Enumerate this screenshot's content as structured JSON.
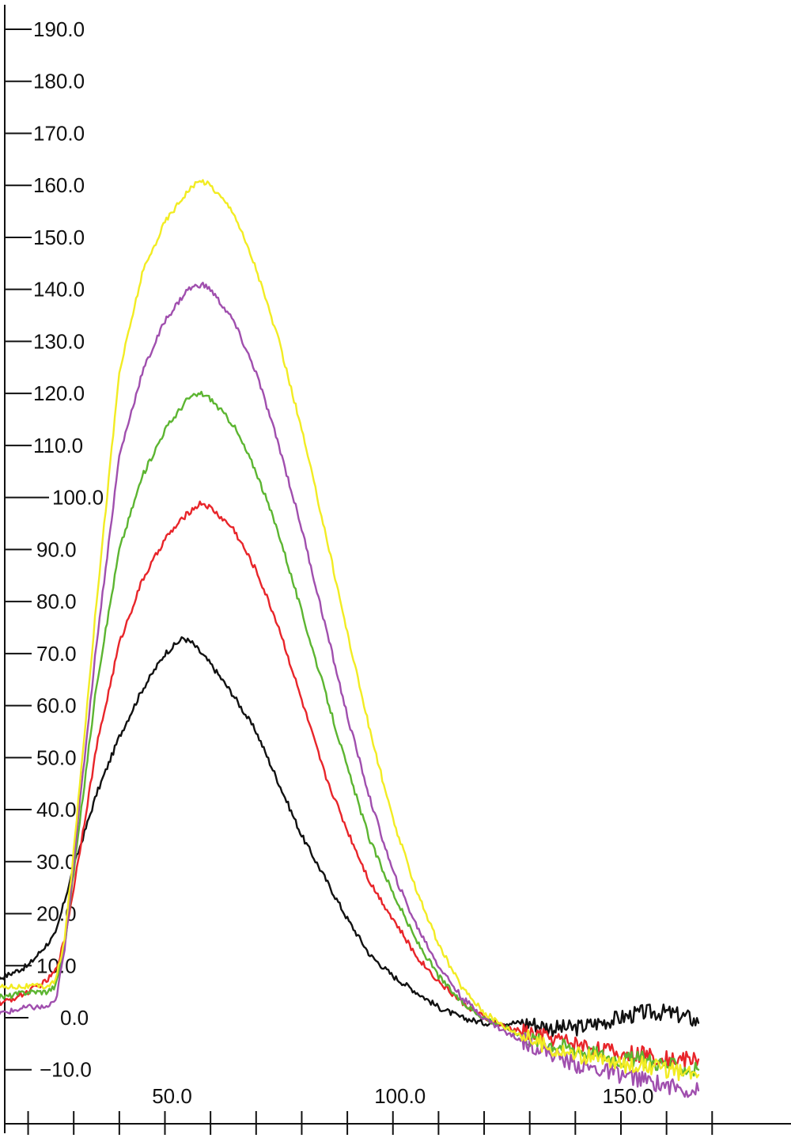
{
  "chart_data": {
    "type": "line",
    "title": "",
    "xlabel": "",
    "ylabel": "",
    "xlim": [
      8,
      167
    ],
    "ylim": [
      -13,
      195
    ],
    "grid": false,
    "legend": "none",
    "y_ticks": [
      {
        "value": 190,
        "label": "190.0"
      },
      {
        "value": 180,
        "label": "180.0"
      },
      {
        "value": 170,
        "label": "170.0"
      },
      {
        "value": 160,
        "label": "160.0"
      },
      {
        "value": 150,
        "label": "150.0"
      },
      {
        "value": 140,
        "label": "140.0"
      },
      {
        "value": 130,
        "label": "130.0"
      },
      {
        "value": 120,
        "label": "120.0"
      },
      {
        "value": 110,
        "label": "110.0"
      },
      {
        "value": 100,
        "label": "100.0"
      },
      {
        "value": 90,
        "label": "90.0"
      },
      {
        "value": 80,
        "label": "80.0"
      },
      {
        "value": 70,
        "label": "70.0"
      },
      {
        "value": 60,
        "label": "60.0"
      },
      {
        "value": 50,
        "label": "50.0"
      },
      {
        "value": 40,
        "label": "40.0"
      },
      {
        "value": 30,
        "label": "30.0"
      },
      {
        "value": 20,
        "label": "20.0"
      },
      {
        "value": 10,
        "label": "10.0"
      },
      {
        "value": 0,
        "label": "0.0"
      },
      {
        "value": -10,
        "label": "−10.0"
      }
    ],
    "x_tick_labels": [
      {
        "value": 50,
        "label": "50.0"
      },
      {
        "value": 100,
        "label": "100.0"
      },
      {
        "value": 150,
        "label": "150.0"
      }
    ],
    "x_minor_ticks": [
      10,
      20,
      30,
      40,
      50,
      60,
      70,
      80,
      90,
      100,
      110,
      120,
      130,
      140,
      150,
      160,
      170
    ],
    "series": [
      {
        "color": "#111111",
        "x": [
          8,
          15,
          20,
          24,
          26,
          30,
          35,
          40,
          45,
          50,
          54,
          56,
          60,
          65,
          70,
          75,
          80,
          85,
          90,
          95,
          100,
          105,
          110,
          115,
          120,
          125,
          130,
          135,
          140,
          145,
          150,
          155,
          160,
          165,
          167
        ],
        "y": [
          6,
          8,
          10,
          14,
          16,
          29,
          43,
          54,
          63,
          70,
          73,
          72,
          68,
          62,
          55,
          45,
          35,
          27,
          19,
          12,
          8,
          5,
          2,
          0,
          -1,
          -1,
          -1,
          -2,
          -2,
          -1,
          0,
          1,
          1,
          0,
          -1
        ]
      },
      {
        "color": "#e8252a",
        "x": [
          8,
          15,
          20,
          24,
          26,
          28,
          30,
          35,
          40,
          45,
          50,
          55,
          58,
          60,
          65,
          70,
          75,
          80,
          85,
          90,
          95,
          100,
          105,
          110,
          115,
          120,
          125,
          130,
          135,
          140,
          145,
          150,
          155,
          160,
          165,
          167
        ],
        "y": [
          2,
          3,
          5,
          7,
          9,
          15,
          25,
          52,
          72,
          84,
          92,
          97,
          99,
          98,
          94,
          86,
          75,
          61,
          47,
          36,
          26,
          19,
          12,
          7,
          3,
          0,
          -2,
          -3,
          -4,
          -5,
          -6,
          -7,
          -7,
          -8,
          -8,
          -8
        ]
      },
      {
        "color": "#5cb531",
        "x": [
          8,
          15,
          20,
          24,
          26,
          28,
          30,
          35,
          40,
          45,
          50,
          55,
          58,
          60,
          65,
          70,
          75,
          80,
          85,
          90,
          95,
          100,
          105,
          110,
          115,
          120,
          125,
          130,
          135,
          140,
          145,
          150,
          155,
          160,
          165,
          167
        ],
        "y": [
          4,
          4,
          5,
          5,
          6,
          14,
          28,
          64,
          90,
          104,
          113,
          119,
          120,
          119,
          114,
          105,
          93,
          78,
          63,
          48,
          34,
          24,
          15,
          8,
          3,
          0,
          -2,
          -4,
          -5,
          -6,
          -7,
          -8,
          -8,
          -9,
          -10,
          -10
        ]
      },
      {
        "color": "#a04fae",
        "x": [
          8,
          15,
          20,
          24,
          26,
          28,
          30,
          35,
          40,
          45,
          50,
          55,
          58,
          60,
          65,
          70,
          75,
          80,
          85,
          90,
          95,
          100,
          105,
          110,
          115,
          120,
          125,
          130,
          135,
          140,
          145,
          150,
          155,
          160,
          165,
          167
        ],
        "y": [
          0,
          1,
          2,
          2,
          3,
          13,
          30,
          72,
          108,
          124,
          134,
          140,
          141,
          140,
          134,
          124,
          110,
          94,
          76,
          58,
          42,
          28,
          18,
          10,
          4,
          0,
          -3,
          -5,
          -7,
          -9,
          -10,
          -11,
          -12,
          -13,
          -14,
          -14
        ]
      },
      {
        "color": "#f2ec23",
        "x": [
          8,
          15,
          20,
          24,
          26,
          28,
          30,
          35,
          40,
          45,
          50,
          55,
          58,
          60,
          65,
          70,
          75,
          80,
          85,
          90,
          95,
          100,
          105,
          110,
          115,
          120,
          125,
          130,
          135,
          140,
          145,
          150,
          155,
          160,
          165,
          167
        ],
        "y": [
          5,
          6,
          6,
          6,
          7,
          15,
          32,
          80,
          124,
          143,
          153,
          159,
          161,
          160,
          155,
          144,
          130,
          113,
          94,
          74,
          55,
          38,
          25,
          14,
          6,
          1,
          -2,
          -4,
          -6,
          -7,
          -8,
          -9,
          -9,
          -10,
          -11,
          -11
        ]
      }
    ]
  }
}
